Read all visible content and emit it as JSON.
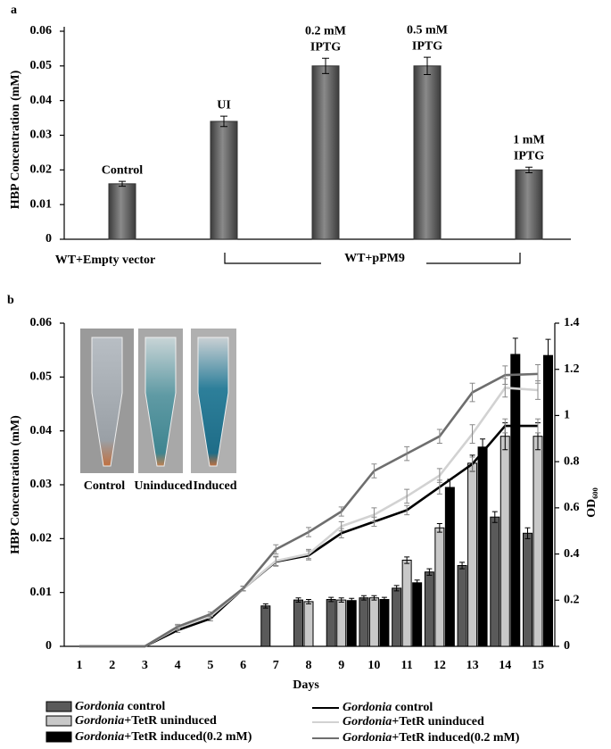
{
  "chart_data": [
    {
      "type": "bar",
      "panel_label": "a",
      "ylabel": "HBP Concentration (mM)",
      "categories": [
        [
          "Control"
        ],
        [
          "UI"
        ],
        [
          "0.2 mM",
          "IPTG"
        ],
        [
          "0.5 mM",
          "IPTG"
        ],
        [
          "1 mM",
          "IPTG"
        ]
      ],
      "values": [
        0.016,
        0.034,
        0.05,
        0.05,
        0.02
      ],
      "errors": [
        0.0007,
        0.0015,
        0.0022,
        0.0025,
        0.0008
      ],
      "color": "#5a5a5a",
      "ylim": [
        0,
        0.06
      ],
      "yticks": [
        0,
        0.01,
        0.02,
        0.03,
        0.04,
        0.05,
        0.06
      ],
      "group_labels": [
        "WT+Empty vector",
        "WT+pPM9"
      ]
    },
    {
      "type": "combo",
      "panel_label": "b",
      "xlabel": "Days",
      "ylabel": "HBP Concentration (mM)",
      "y2label": "OD₆₀₀",
      "x": [
        1,
        2,
        3,
        4,
        5,
        6,
        7,
        8,
        9,
        10,
        11,
        12,
        13,
        14,
        15
      ],
      "ylim": [
        0,
        0.06
      ],
      "yticks": [
        0,
        0.01,
        0.02,
        0.03,
        0.04,
        0.05,
        0.06
      ],
      "y2lim": [
        0,
        1.4
      ],
      "y2ticks": [
        0,
        0.2,
        0.4,
        0.6,
        0.8,
        1,
        1.2,
        1.4
      ],
      "inset_labels": [
        "Control",
        "Uninduced",
        "Induced"
      ],
      "series": [
        {
          "name": "Gordonia control",
          "kind": "bar",
          "color": "#5a5a5a",
          "values": [
            null,
            null,
            null,
            null,
            null,
            null,
            0.0075,
            0.0086,
            0.0087,
            0.009,
            0.0108,
            0.0138,
            0.015,
            0.024,
            0.021
          ],
          "errors": [
            null,
            null,
            null,
            null,
            null,
            null,
            0.0004,
            0.0004,
            0.0004,
            0.0004,
            0.0005,
            0.0006,
            0.0006,
            0.001,
            0.001
          ]
        },
        {
          "name": "Gordonia+TetR uninduced",
          "kind": "bar",
          "color": "#c8c8c8",
          "values": [
            null,
            null,
            null,
            null,
            null,
            null,
            null,
            0.0083,
            0.0086,
            0.009,
            0.016,
            0.022,
            0.034,
            0.039,
            0.039
          ],
          "errors": [
            null,
            null,
            null,
            null,
            null,
            null,
            null,
            0.0004,
            0.0004,
            0.0004,
            0.0006,
            0.0008,
            0.0015,
            0.0025,
            0.0025
          ]
        },
        {
          "name": "Gordonia+TetR induced(0.2 mM)",
          "kind": "bar",
          "color": "#000000",
          "values": [
            null,
            null,
            null,
            null,
            null,
            null,
            null,
            null,
            0.0085,
            0.0087,
            0.0118,
            0.0295,
            0.037,
            0.0542,
            0.054
          ],
          "errors": [
            null,
            null,
            null,
            null,
            null,
            null,
            null,
            null,
            0.0004,
            0.0004,
            0.0005,
            0.0015,
            0.0015,
            0.003,
            0.003
          ]
        },
        {
          "name": "Gordonia control",
          "kind": "line",
          "axis": "y2",
          "color": "#000000",
          "values": [
            0,
            0,
            0,
            0.07,
            0.12,
            0.25,
            0.367,
            0.394,
            0.49,
            0.54,
            0.59,
            0.69,
            0.79,
            0.955,
            0.955
          ],
          "errors": [
            null,
            null,
            null,
            0.01,
            0.01,
            0.01,
            0.02,
            0.02,
            0.02,
            0.02,
            0.02,
            0.03,
            0.03,
            0.03,
            0.03
          ]
        },
        {
          "name": "Gordonia+TetR uninduced",
          "kind": "line",
          "axis": "y2",
          "color": "#d2d2d2",
          "values": [
            0,
            0,
            0,
            0.08,
            0.13,
            0.25,
            0.37,
            0.4,
            0.52,
            0.57,
            0.65,
            0.74,
            0.92,
            1.12,
            1.11
          ],
          "errors": [
            null,
            null,
            null,
            0.01,
            0.01,
            0.01,
            0.02,
            0.02,
            0.02,
            0.03,
            0.03,
            0.03,
            0.04,
            0.04,
            0.04
          ]
        },
        {
          "name": "Gordonia+TetR induced(0.2 mM)",
          "kind": "line",
          "axis": "y2",
          "color": "#6e6e6e",
          "values": [
            0,
            0,
            0,
            0.085,
            0.139,
            0.251,
            0.42,
            0.495,
            0.584,
            0.76,
            0.835,
            0.91,
            1.1,
            1.175,
            1.18
          ],
          "errors": [
            null,
            null,
            null,
            0.01,
            0.01,
            0.01,
            0.02,
            0.02,
            0.02,
            0.03,
            0.03,
            0.03,
            0.04,
            0.04,
            0.04
          ]
        }
      ]
    }
  ]
}
